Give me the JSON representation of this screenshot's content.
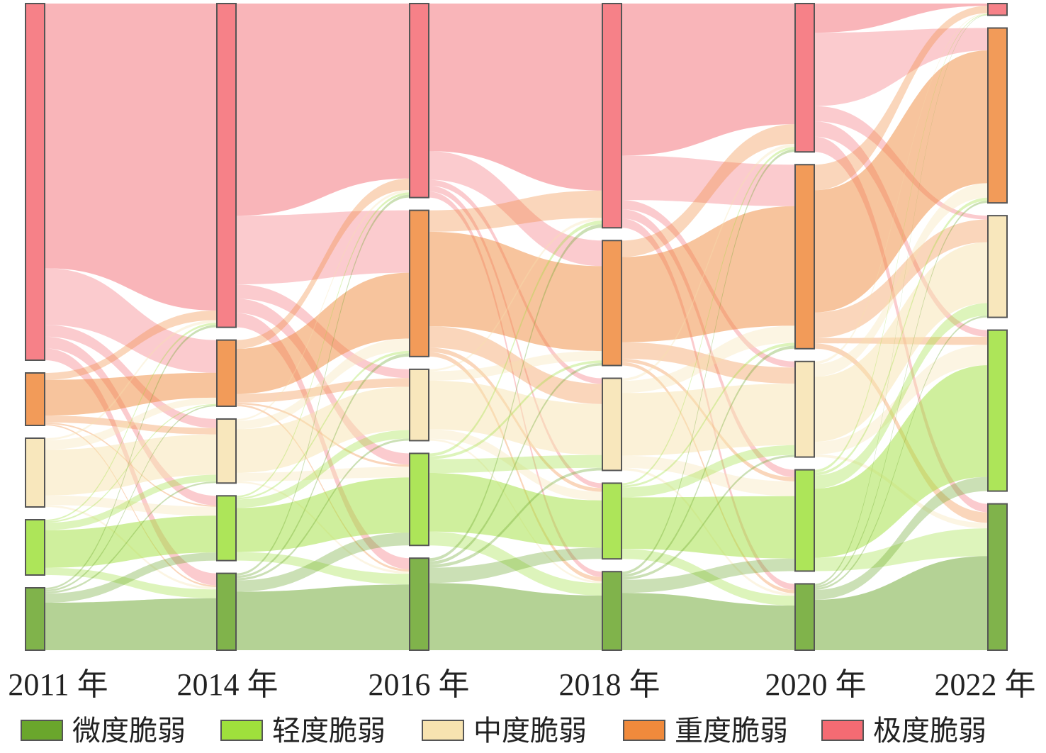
{
  "chart_data": {
    "type": "sankey",
    "title": "",
    "columns": [
      "2011 年",
      "2014 年",
      "2016 年",
      "2018 年",
      "2020 年",
      "2022 年"
    ],
    "categories": [
      "微度脆弱",
      "轻度脆弱",
      "中度脆弱",
      "重度脆弱",
      "极度脆弱"
    ],
    "colors": {
      "微度脆弱": "#6aa62c",
      "轻度脆弱": "#9fe03c",
      "中度脆弱": "#f7e3b0",
      "重度脆弱": "#f08a3c",
      "极度脆弱": "#f46b73"
    },
    "node_values": [
      {
        "极度脆弱": 503,
        "重度脆弱": 74,
        "中度脆弱": 97,
        "轻度脆弱": 78,
        "微度脆弱": 88
      },
      {
        "极度脆弱": 455,
        "重度脆弱": 93,
        "中度脆弱": 90,
        "轻度脆弱": 91,
        "微度脆弱": 108
      },
      {
        "极度脆弱": 272,
        "重度脆弱": 205,
        "中度脆弱": 100,
        "轻度脆弱": 129,
        "微度脆弱": 129
      },
      {
        "极度脆弱": 314,
        "重度脆弱": 175,
        "中度脆弱": 129,
        "轻度脆弱": 106,
        "微度脆弱": 110
      },
      {
        "极度脆弱": 208,
        "重度脆弱": 258,
        "中度脆弱": 134,
        "轻度脆弱": 142,
        "微度脆弱": 93
      },
      {
        "极度脆弱": 16,
        "重度脆弱": 239,
        "中度脆弱": 139,
        "轻度脆弱": 220,
        "微度脆弱": 200
      }
    ]
  },
  "legend": {
    "items": [
      {
        "label": "微度脆弱",
        "color": "#6aa62c"
      },
      {
        "label": "轻度脆弱",
        "color": "#9fe03c"
      },
      {
        "label": "中度脆弱",
        "color": "#f7e3b0"
      },
      {
        "label": "重度脆弱",
        "color": "#f08a3c"
      },
      {
        "label": "极度脆弱",
        "color": "#f46b73"
      }
    ]
  }
}
